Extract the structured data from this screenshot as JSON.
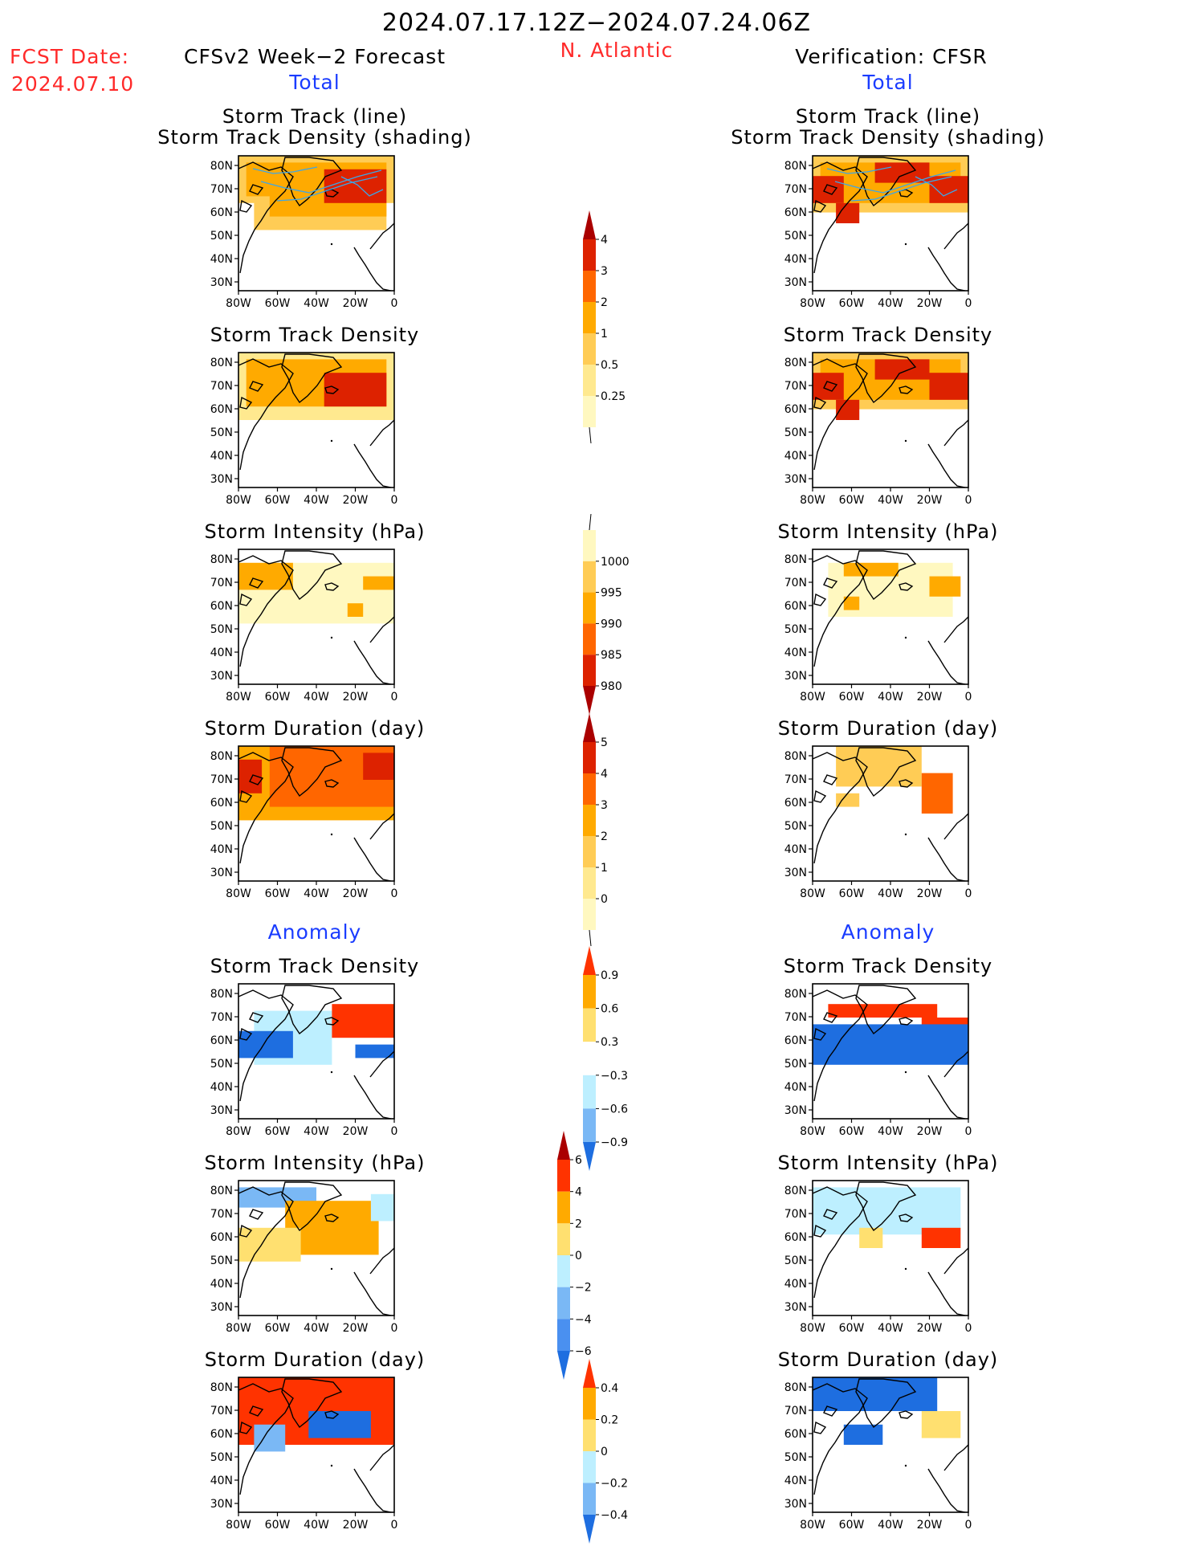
{
  "header": {
    "period": "2024.07.17.12Z−2024.07.24.06Z",
    "fcst_label": "FCST Date:",
    "fcst_date": "2024.07.10",
    "forecast_title": "CFSv2 Week−2 Forecast",
    "region": "N. Atlantic",
    "verification_title": "Verification: CFSR",
    "total_left": "Total",
    "total_right": "Total",
    "anomaly_left": "Anomaly",
    "anomaly_right": "Anomaly"
  },
  "panels": {
    "track_line": "Storm Track (line)",
    "track_density_shading": "Storm Track Density (shading)",
    "track_density": "Storm Track Density",
    "intensity": "Storm Intensity (hPa)",
    "duration": "Storm Duration (day)"
  },
  "axes": {
    "lat_labels": [
      "80N",
      "70N",
      "60N",
      "50N",
      "40N",
      "30N"
    ],
    "lon_labels": [
      "80W",
      "60W",
      "40W",
      "20W",
      "0"
    ]
  },
  "colorbars": {
    "density": {
      "labels": [
        "4",
        "3",
        "2",
        "1",
        "0.5",
        "0.25"
      ],
      "colors": [
        "#aa0000",
        "#dd2200",
        "#ff6600",
        "#ffaa00",
        "#ffcc55",
        "#ffe98f",
        "#fff8c0"
      ]
    },
    "intensity": {
      "labels": [
        "1000",
        "995",
        "990",
        "985",
        "980"
      ],
      "colors": [
        "#fff8c0",
        "#ffcc55",
        "#ffaa00",
        "#ff6600",
        "#dd2200",
        "#aa0000"
      ]
    },
    "duration": {
      "labels": [
        "5",
        "4",
        "3",
        "2",
        "1",
        "0"
      ],
      "colors": [
        "#aa0000",
        "#dd2200",
        "#ff6600",
        "#ffaa00",
        "#ffcc55",
        "#ffe98f",
        "#fff8c0"
      ]
    },
    "anom_density": {
      "labels": [
        "0.9",
        "0.6",
        "0.3",
        "−0.3",
        "−0.6",
        "−0.9"
      ],
      "colors": [
        "#ff3300",
        "#ffaa00",
        "#ffe070",
        "#ffffff",
        "#bdefff",
        "#7ab8f5",
        "#1e6ee0"
      ]
    },
    "anom_intensity": {
      "labels": [
        "6",
        "4",
        "2",
        "0",
        "−2",
        "−4",
        "−6"
      ],
      "colors": [
        "#aa0000",
        "#ff3300",
        "#ffaa00",
        "#ffe070",
        "#bdefff",
        "#7ab8f5",
        "#4a90f0",
        "#1e6ee0"
      ]
    },
    "anom_duration": {
      "labels": [
        "0.4",
        "0.2",
        "0",
        "−0.2",
        "−0.4"
      ],
      "colors": [
        "#ff3300",
        "#ffaa00",
        "#ffe070",
        "#bdefff",
        "#7ab8f5",
        "#1e6ee0"
      ]
    }
  },
  "fields": {
    "left_track": [
      {
        "c": "#ffcc55",
        "r": [
          [
            0,
            0,
            1,
            0.35
          ],
          [
            0.1,
            0.05,
            0.95,
            0.55
          ]
        ]
      },
      {
        "c": "#ffaa00",
        "r": [
          [
            0.05,
            0.05,
            0.95,
            0.3
          ],
          [
            0.2,
            0.2,
            0.95,
            0.45
          ]
        ]
      },
      {
        "c": "#dd2200",
        "r": [
          [
            0.55,
            0.1,
            0.95,
            0.35
          ]
        ]
      }
    ],
    "right_track": [
      {
        "c": "#ffcc55",
        "r": [
          [
            0,
            0,
            1,
            0.42
          ]
        ]
      },
      {
        "c": "#ffaa00",
        "r": [
          [
            0.05,
            0.05,
            0.95,
            0.35
          ]
        ]
      },
      {
        "c": "#dd2200",
        "r": [
          [
            0,
            0.15,
            0.2,
            0.35
          ],
          [
            0.4,
            0.05,
            0.75,
            0.2
          ],
          [
            0.75,
            0.15,
            1,
            0.35
          ],
          [
            0.15,
            0.35,
            0.3,
            0.5
          ]
        ]
      }
    ],
    "left_dens": [
      {
        "c": "#ffe98f",
        "r": [
          [
            0,
            0,
            1,
            0.5
          ]
        ]
      },
      {
        "c": "#ffaa00",
        "r": [
          [
            0.05,
            0.05,
            0.95,
            0.4
          ]
        ]
      },
      {
        "c": "#dd2200",
        "r": [
          [
            0.55,
            0.15,
            0.95,
            0.4
          ]
        ]
      }
    ],
    "right_dens": [
      {
        "c": "#ffcc55",
        "r": [
          [
            0,
            0,
            1,
            0.42
          ]
        ]
      },
      {
        "c": "#ffaa00",
        "r": [
          [
            0.05,
            0.05,
            0.95,
            0.35
          ]
        ]
      },
      {
        "c": "#dd2200",
        "r": [
          [
            0,
            0.15,
            0.2,
            0.35
          ],
          [
            0.4,
            0.05,
            0.75,
            0.2
          ],
          [
            0.75,
            0.15,
            1,
            0.35
          ],
          [
            0.15,
            0.35,
            0.3,
            0.5
          ]
        ]
      }
    ],
    "left_int": [
      {
        "c": "#fff8c0",
        "r": [
          [
            0,
            0.1,
            1,
            0.55
          ]
        ]
      },
      {
        "c": "#ffaa00",
        "r": [
          [
            0,
            0.1,
            0.35,
            0.3
          ],
          [
            0.8,
            0.2,
            1,
            0.3
          ],
          [
            0.7,
            0.4,
            0.8,
            0.5
          ]
        ]
      }
    ],
    "right_int": [
      {
        "c": "#fff8c0",
        "r": [
          [
            0.1,
            0.1,
            0.9,
            0.5
          ]
        ]
      },
      {
        "c": "#ffaa00",
        "r": [
          [
            0.2,
            0.1,
            0.55,
            0.2
          ],
          [
            0.75,
            0.2,
            0.95,
            0.35
          ],
          [
            0.2,
            0.35,
            0.3,
            0.45
          ]
        ]
      }
    ],
    "left_dur": [
      {
        "c": "#ffaa00",
        "r": [
          [
            0,
            0,
            1,
            0.55
          ]
        ]
      },
      {
        "c": "#ff6600",
        "r": [
          [
            0.2,
            0,
            1,
            0.45
          ]
        ]
      },
      {
        "c": "#dd2200",
        "r": [
          [
            0,
            0.1,
            0.15,
            0.35
          ],
          [
            0.8,
            0.05,
            1,
            0.25
          ]
        ]
      }
    ],
    "right_dur": [
      {
        "c": "#ffcc55",
        "r": [
          [
            0.15,
            0,
            0.7,
            0.3
          ],
          [
            0.15,
            0.35,
            0.3,
            0.45
          ]
        ]
      },
      {
        "c": "#ff6600",
        "r": [
          [
            0.7,
            0.2,
            0.9,
            0.5
          ]
        ]
      }
    ],
    "left_adens": [
      {
        "c": "#bdefff",
        "r": [
          [
            0.1,
            0.2,
            0.6,
            0.6
          ]
        ]
      },
      {
        "c": "#1e6ee0",
        "r": [
          [
            0,
            0.35,
            0.35,
            0.55
          ],
          [
            0.75,
            0.45,
            1,
            0.55
          ]
        ]
      },
      {
        "c": "#ff3300",
        "r": [
          [
            0.6,
            0.15,
            1,
            0.4
          ]
        ]
      }
    ],
    "right_adens": [
      {
        "c": "#ff3300",
        "r": [
          [
            0.1,
            0.15,
            0.8,
            0.25
          ],
          [
            0.2,
            0.4,
            0.35,
            0.5
          ],
          [
            0.7,
            0.25,
            1,
            0.4
          ]
        ]
      },
      {
        "c": "#1e6ee0",
        "r": [
          [
            0,
            0.3,
            1,
            0.6
          ]
        ]
      }
    ],
    "left_aint": [
      {
        "c": "#7ab8f5",
        "r": [
          [
            0,
            0.05,
            0.5,
            0.2
          ]
        ]
      },
      {
        "c": "#ffaa00",
        "r": [
          [
            0.3,
            0.15,
            0.9,
            0.55
          ]
        ]
      },
      {
        "c": "#ffe070",
        "r": [
          [
            0,
            0.35,
            0.4,
            0.6
          ]
        ]
      },
      {
        "c": "#bdefff",
        "r": [
          [
            0.85,
            0.1,
            1,
            0.3
          ]
        ]
      }
    ],
    "right_aint": [
      {
        "c": "#bdefff",
        "r": [
          [
            0,
            0.05,
            0.95,
            0.4
          ]
        ]
      },
      {
        "c": "#ffe070",
        "r": [
          [
            0.3,
            0.35,
            0.45,
            0.5
          ]
        ]
      },
      {
        "c": "#ff3300",
        "r": [
          [
            0.7,
            0.35,
            0.95,
            0.5
          ]
        ]
      }
    ],
    "left_adur": [
      {
        "c": "#ff3300",
        "r": [
          [
            0,
            0,
            1,
            0.5
          ]
        ]
      },
      {
        "c": "#1e6ee0",
        "r": [
          [
            0.45,
            0.25,
            0.85,
            0.45
          ]
        ]
      },
      {
        "c": "#7ab8f5",
        "r": [
          [
            0.1,
            0.35,
            0.3,
            0.55
          ]
        ]
      }
    ],
    "right_adur": [
      {
        "c": "#1e6ee0",
        "r": [
          [
            0,
            0,
            0.8,
            0.25
          ],
          [
            0.2,
            0.35,
            0.45,
            0.5
          ]
        ]
      },
      {
        "c": "#ffe070",
        "r": [
          [
            0.7,
            0.25,
            0.95,
            0.45
          ]
        ]
      }
    ]
  }
}
